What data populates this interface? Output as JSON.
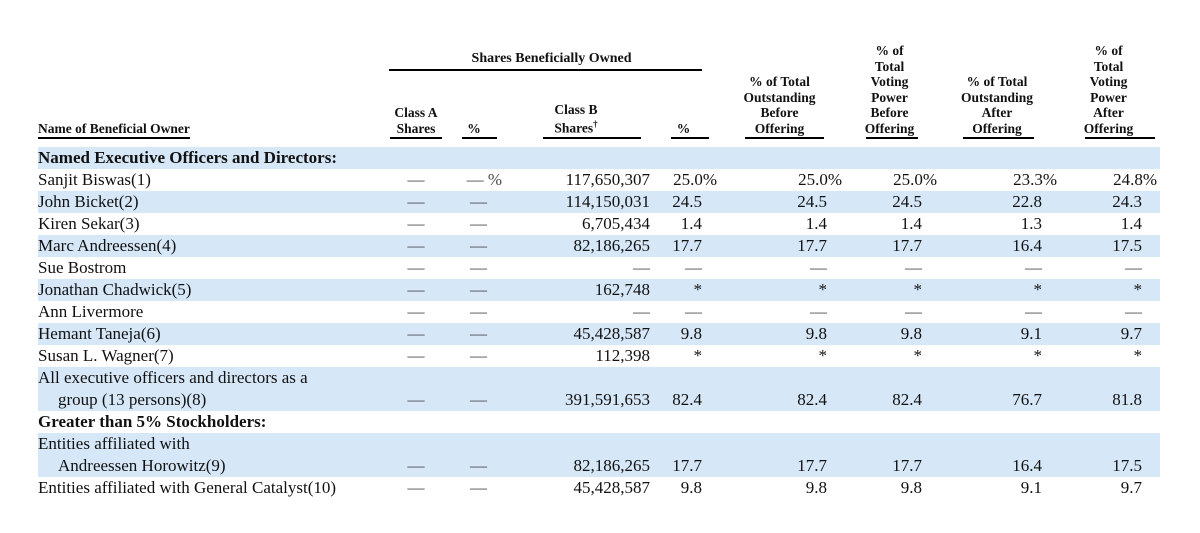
{
  "table": {
    "group_header": "Shares Beneficially Owned",
    "columns": {
      "name": {
        "label": "Name of Beneficial Owner"
      },
      "class_a_shares": {
        "lines": [
          "Class A",
          "Shares"
        ]
      },
      "class_a_pct": {
        "lines": [
          "%"
        ]
      },
      "class_b_shares": {
        "lines": [
          "Class B",
          "Shares†"
        ]
      },
      "class_b_pct": {
        "lines": [
          "%"
        ]
      },
      "out_before": {
        "lines": [
          "% of Total",
          "Outstanding",
          "Before",
          "Offering"
        ]
      },
      "vote_before": {
        "lines": [
          "% of",
          "Total",
          "Voting",
          "Power",
          "Before",
          "Offering"
        ]
      },
      "out_after": {
        "lines": [
          "% of Total",
          "Outstanding",
          "After",
          "Offering"
        ]
      },
      "vote_after": {
        "lines": [
          "% of",
          "Total",
          "Voting",
          "Power",
          "After",
          "Offering"
        ]
      }
    },
    "rows": [
      {
        "type": "section",
        "shaded": true,
        "label": "Named Executive Officers and Directors:"
      },
      {
        "type": "data",
        "shaded": false,
        "name_lines": [
          "Sanjit Biswas(1)"
        ],
        "cells": [
          "—",
          "— %",
          "117,650,307",
          "25.0%",
          "25.0%",
          "25.0%",
          "23.3%",
          "24.8%"
        ]
      },
      {
        "type": "data",
        "shaded": true,
        "name_lines": [
          "John Bicket(2)"
        ],
        "cells": [
          "—",
          "—",
          "114,150,031",
          "24.5",
          "24.5",
          "24.5",
          "22.8",
          "24.3"
        ]
      },
      {
        "type": "data",
        "shaded": false,
        "name_lines": [
          "Kiren Sekar(3)"
        ],
        "cells": [
          "—",
          "—",
          "6,705,434",
          "1.4",
          "1.4",
          "1.4",
          "1.3",
          "1.4"
        ]
      },
      {
        "type": "data",
        "shaded": true,
        "name_lines": [
          "Marc Andreessen(4)"
        ],
        "cells": [
          "—",
          "—",
          "82,186,265",
          "17.7",
          "17.7",
          "17.7",
          "16.4",
          "17.5"
        ]
      },
      {
        "type": "data",
        "shaded": false,
        "name_lines": [
          "Sue Bostrom"
        ],
        "cells": [
          "—",
          "—",
          "—",
          "—",
          "—",
          "—",
          "—",
          "—"
        ]
      },
      {
        "type": "data",
        "shaded": true,
        "name_lines": [
          "Jonathan Chadwick(5)"
        ],
        "cells": [
          "—",
          "—",
          "162,748",
          "*",
          "*",
          "*",
          "*",
          "*"
        ]
      },
      {
        "type": "data",
        "shaded": false,
        "name_lines": [
          "Ann Livermore"
        ],
        "cells": [
          "—",
          "—",
          "—",
          "—",
          "—",
          "—",
          "—",
          "—"
        ]
      },
      {
        "type": "data",
        "shaded": true,
        "name_lines": [
          "Hemant Taneja(6)"
        ],
        "cells": [
          "—",
          "—",
          "45,428,587",
          "9.8",
          "9.8",
          "9.8",
          "9.1",
          "9.7"
        ]
      },
      {
        "type": "data",
        "shaded": false,
        "name_lines": [
          "Susan L. Wagner(7)"
        ],
        "cells": [
          "—",
          "—",
          "112,398",
          "*",
          "*",
          "*",
          "*",
          "*"
        ]
      },
      {
        "type": "data",
        "shaded": true,
        "name_lines": [
          "All executive officers and directors as a",
          "group (13 persons)(8)"
        ],
        "cells": [
          "—",
          "—",
          "391,591,653",
          "82.4",
          "82.4",
          "82.4",
          "76.7",
          "81.8"
        ]
      },
      {
        "type": "section",
        "shaded": false,
        "label": "Greater than 5% Stockholders:"
      },
      {
        "type": "data",
        "shaded": true,
        "name_lines": [
          "Entities affiliated with",
          "Andreessen Horowitz(9)"
        ],
        "cells": [
          "—",
          "—",
          "82,186,265",
          "17.7",
          "17.7",
          "17.7",
          "16.4",
          "17.5"
        ]
      },
      {
        "type": "data",
        "shaded": false,
        "name_lines": [
          "Entities affiliated with General Catalyst(10)"
        ],
        "cells": [
          "—",
          "—",
          "45,428,587",
          "9.8",
          "9.8",
          "9.8",
          "9.1",
          "9.7"
        ]
      }
    ]
  }
}
